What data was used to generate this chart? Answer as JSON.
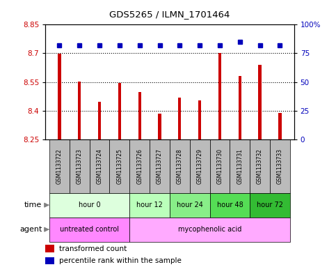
{
  "title": "GDS5265 / ILMN_1701464",
  "samples": [
    "GSM1133722",
    "GSM1133723",
    "GSM1133724",
    "GSM1133725",
    "GSM1133726",
    "GSM1133727",
    "GSM1133728",
    "GSM1133729",
    "GSM1133730",
    "GSM1133731",
    "GSM1133732",
    "GSM1133733"
  ],
  "transformed_counts": [
    8.697,
    8.553,
    8.447,
    8.543,
    8.497,
    8.385,
    8.467,
    8.452,
    8.7,
    8.58,
    8.64,
    8.387
  ],
  "percentile_ranks": [
    82,
    82,
    82,
    82,
    82,
    82,
    82,
    82,
    82,
    85,
    82,
    82
  ],
  "ylim_left": [
    8.25,
    8.85
  ],
  "ylim_right": [
    0,
    100
  ],
  "yticks_left": [
    8.25,
    8.4,
    8.55,
    8.7,
    8.85
  ],
  "yticks_right": [
    0,
    25,
    50,
    75,
    100
  ],
  "ytick_labels_left": [
    "8.25",
    "8.4",
    "8.55",
    "8.7",
    "8.85"
  ],
  "ytick_labels_right": [
    "0",
    "25",
    "50",
    "75",
    "100%"
  ],
  "bar_color": "#cc0000",
  "dot_color": "#0000bb",
  "bar_bottom": 8.25,
  "gridlines": [
    8.4,
    8.55,
    8.7
  ],
  "time_groups": [
    {
      "label": "hour 0",
      "start": 0,
      "end": 4,
      "color": "#ddffdd"
    },
    {
      "label": "hour 12",
      "start": 4,
      "end": 6,
      "color": "#bbffbb"
    },
    {
      "label": "hour 24",
      "start": 6,
      "end": 8,
      "color": "#88ee88"
    },
    {
      "label": "hour 48",
      "start": 8,
      "end": 10,
      "color": "#55dd55"
    },
    {
      "label": "hour 72",
      "start": 10,
      "end": 12,
      "color": "#33bb33"
    }
  ],
  "agent_groups": [
    {
      "label": "untreated control",
      "start": 0,
      "end": 4,
      "color": "#ff88ff"
    },
    {
      "label": "mycophenolic acid",
      "start": 4,
      "end": 12,
      "color": "#ffaaff"
    }
  ],
  "tick_label_color_left": "#cc0000",
  "tick_label_color_right": "#0000bb",
  "sample_area_color": "#bbbbbb",
  "bar_width": 0.15
}
